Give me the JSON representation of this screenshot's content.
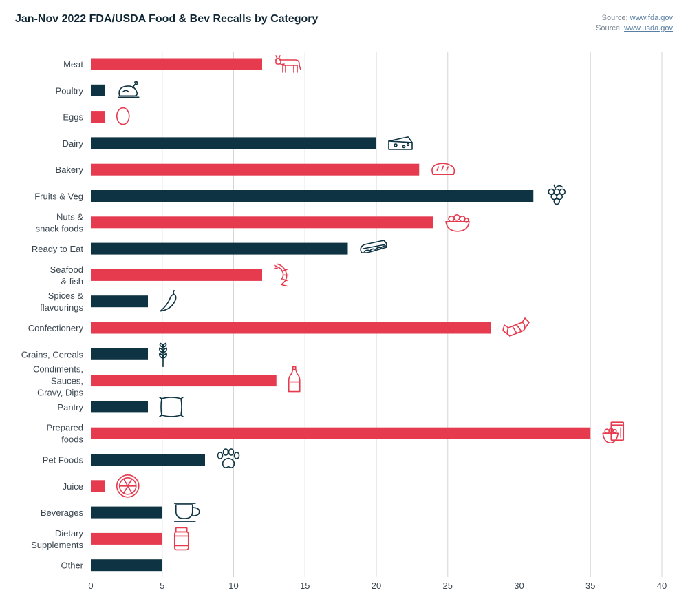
{
  "title": "Jan-Nov 2022 FDA/USDA Food & Bev Recalls by Category",
  "sources": [
    {
      "prefix": "Source: ",
      "link": "www.fda.gov"
    },
    {
      "prefix": "Source: ",
      "link": "www.usda.gov"
    }
  ],
  "colors": {
    "red": "#e63a4f",
    "navy": "#0e3342",
    "grid": "#d6d6d6"
  },
  "chart_data": {
    "type": "bar",
    "orientation": "horizontal",
    "title": "Jan-Nov 2022 FDA/USDA Food & Bev Recalls by Category",
    "xlim": [
      0,
      40
    ],
    "xticks": [
      0,
      5,
      10,
      15,
      20,
      25,
      30,
      35,
      40
    ],
    "grid": true,
    "categories": [
      {
        "label": "Meat",
        "value": 12,
        "color": "red",
        "icon": "cow-icon"
      },
      {
        "label": "Poultry",
        "value": 1,
        "color": "navy",
        "icon": "roast-chicken-icon"
      },
      {
        "label": "Eggs",
        "value": 1,
        "color": "red",
        "icon": "egg-icon"
      },
      {
        "label": "Dairy",
        "value": 20,
        "color": "navy",
        "icon": "cheese-icon"
      },
      {
        "label": "Bakery",
        "value": 23,
        "color": "red",
        "icon": "bread-icon"
      },
      {
        "label": "Fruits & Veg",
        "value": 31,
        "color": "navy",
        "icon": "grapes-icon"
      },
      {
        "label": "Nuts &\nsnack foods",
        "value": 24,
        "color": "red",
        "icon": "snack-bowl-icon"
      },
      {
        "label": "Ready to Eat",
        "value": 18,
        "color": "navy",
        "icon": "sandwich-icon"
      },
      {
        "label": "Seafood\n& fish",
        "value": 12,
        "color": "red",
        "icon": "shrimp-icon"
      },
      {
        "label": "Spices &\nflavourings",
        "value": 4,
        "color": "navy",
        "icon": "chili-icon"
      },
      {
        "label": "Confectionery",
        "value": 28,
        "color": "red",
        "icon": "candy-icon"
      },
      {
        "label": "Grains, Cereals",
        "value": 4,
        "color": "navy",
        "icon": "wheat-icon"
      },
      {
        "label": "Condiments,\nSauces,\nGravy, Dips",
        "value": 13,
        "color": "red",
        "icon": "sauce-bottle-icon"
      },
      {
        "label": "Pantry",
        "value": 4,
        "color": "navy",
        "icon": "flour-sack-icon"
      },
      {
        "label": "Prepared\nfoods",
        "value": 35,
        "color": "red",
        "icon": "cereal-box-icon"
      },
      {
        "label": "Pet Foods",
        "value": 8,
        "color": "navy",
        "icon": "paw-icon"
      },
      {
        "label": "Juice",
        "value": 1,
        "color": "red",
        "icon": "citrus-slice-icon"
      },
      {
        "label": "Beverages",
        "value": 5,
        "color": "navy",
        "icon": "coffee-cup-icon"
      },
      {
        "label": "Dietary\nSupplements",
        "value": 5,
        "color": "red",
        "icon": "supplement-jar-icon"
      },
      {
        "label": "Other",
        "value": 5,
        "color": "navy",
        "icon": ""
      }
    ]
  }
}
